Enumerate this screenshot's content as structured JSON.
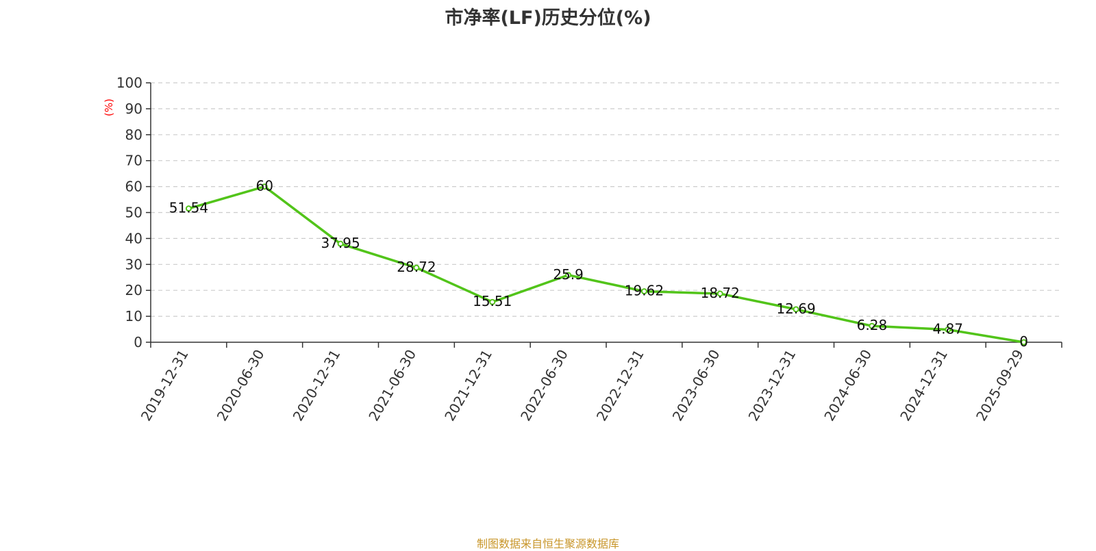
{
  "title": "市净率(LF)历史分位(%)",
  "source": "制图数据来自恒生聚源数据库",
  "colors": {
    "line": "#52c41a",
    "unit_label": "#ff0000",
    "source": "#c8962a",
    "grid": "#cccccc",
    "axis": "#333333"
  },
  "chart_data": {
    "type": "line",
    "title": "市净率(LF)历史分位(%)",
    "ylabel": "(%)",
    "xlabel": "",
    "ylim": [
      0,
      100
    ],
    "yticks": [
      0,
      10,
      20,
      30,
      40,
      50,
      60,
      70,
      80,
      90,
      100
    ],
    "grid": true,
    "categories": [
      "2019-12-31",
      "2020-06-30",
      "2020-12-31",
      "2021-06-30",
      "2021-12-31",
      "2022-06-30",
      "2022-12-31",
      "2023-06-30",
      "2023-12-31",
      "2024-06-30",
      "2024-12-31",
      "2025-09-29"
    ],
    "series": [
      {
        "values": [
          51.54,
          60,
          37.95,
          28.72,
          15.51,
          25.9,
          19.62,
          18.72,
          12.69,
          6.28,
          4.87,
          0
        ],
        "labels": [
          "51.54",
          "60",
          "37.95",
          "28.72",
          "15.51",
          "25.9",
          "19.62",
          "18.72",
          "12.69",
          "6.28",
          "4.87",
          "0"
        ]
      }
    ]
  }
}
